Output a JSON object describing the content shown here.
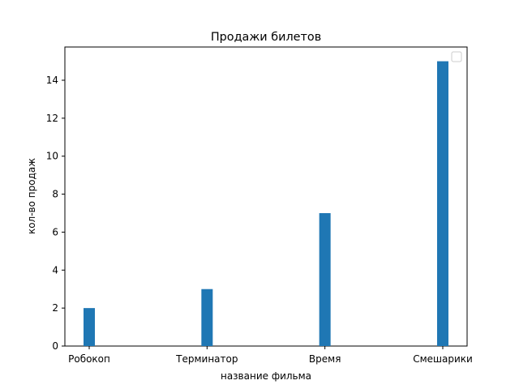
{
  "chart_data": {
    "type": "bar",
    "title": "Продажи билетов",
    "xlabel": "название фильма",
    "ylabel": "кол-во продаж",
    "categories": [
      "Робокоп",
      "Терминатор",
      "Время",
      "Смешарики"
    ],
    "values": [
      2,
      3,
      7,
      15
    ],
    "ylim": [
      0,
      15.75
    ],
    "yticks": [
      0,
      2,
      4,
      6,
      8,
      10,
      12,
      14
    ],
    "grid": false,
    "legend": "top-right",
    "bar_color": "#1f77b4"
  }
}
